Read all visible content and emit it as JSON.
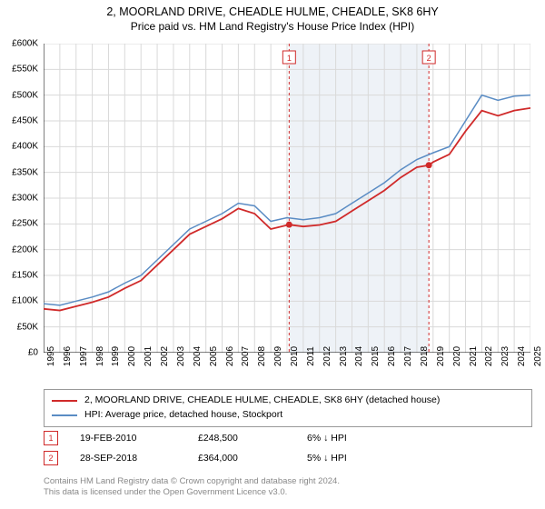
{
  "title": "2, MOORLAND DRIVE, CHEADLE HULME, CHEADLE, SK8 6HY",
  "subtitle": "Price paid vs. HM Land Registry's House Price Index (HPI)",
  "chart": {
    "type": "line",
    "background_color": "#ffffff",
    "grid_color": "#d9d9d9",
    "axis_color": "#000000",
    "shaded_band": {
      "x_from": 2010.13,
      "x_to": 2018.74,
      "fill": "#eef2f7"
    },
    "marker_dash_color": "#d02a2a",
    "x": {
      "min": 1995,
      "max": 2025,
      "tick_step": 1,
      "label_fontsize": 10
    },
    "y": {
      "min": 0,
      "max": 600000,
      "tick_step": 50000,
      "prefix": "£",
      "suffix": "K",
      "label_fontsize": 10
    },
    "series": [
      {
        "name": "2, MOORLAND DRIVE, CHEADLE HULME, CHEADLE, SK8 6HY (detached house)",
        "color": "#d02a2a",
        "line_width": 1.8,
        "points": [
          [
            1995,
            85000
          ],
          [
            1996,
            82000
          ],
          [
            1997,
            90000
          ],
          [
            1998,
            98000
          ],
          [
            1999,
            108000
          ],
          [
            2000,
            125000
          ],
          [
            2001,
            140000
          ],
          [
            2002,
            170000
          ],
          [
            2003,
            200000
          ],
          [
            2004,
            230000
          ],
          [
            2005,
            245000
          ],
          [
            2006,
            260000
          ],
          [
            2007,
            280000
          ],
          [
            2008,
            270000
          ],
          [
            2009,
            240000
          ],
          [
            2010.13,
            248500
          ],
          [
            2011,
            245000
          ],
          [
            2012,
            248000
          ],
          [
            2013,
            255000
          ],
          [
            2014,
            275000
          ],
          [
            2015,
            295000
          ],
          [
            2016,
            315000
          ],
          [
            2017,
            340000
          ],
          [
            2018,
            360000
          ],
          [
            2018.74,
            364000
          ],
          [
            2019,
            370000
          ],
          [
            2020,
            385000
          ],
          [
            2021,
            430000
          ],
          [
            2022,
            470000
          ],
          [
            2023,
            460000
          ],
          [
            2024,
            470000
          ],
          [
            2025,
            475000
          ]
        ]
      },
      {
        "name": "HPI: Average price, detached house, Stockport",
        "color": "#5a8cc4",
        "line_width": 1.5,
        "points": [
          [
            1995,
            95000
          ],
          [
            1996,
            92000
          ],
          [
            1997,
            100000
          ],
          [
            1998,
            108000
          ],
          [
            1999,
            118000
          ],
          [
            2000,
            135000
          ],
          [
            2001,
            150000
          ],
          [
            2002,
            180000
          ],
          [
            2003,
            210000
          ],
          [
            2004,
            240000
          ],
          [
            2005,
            255000
          ],
          [
            2006,
            270000
          ],
          [
            2007,
            290000
          ],
          [
            2008,
            285000
          ],
          [
            2009,
            255000
          ],
          [
            2010,
            262000
          ],
          [
            2011,
            258000
          ],
          [
            2012,
            262000
          ],
          [
            2013,
            270000
          ],
          [
            2014,
            290000
          ],
          [
            2015,
            310000
          ],
          [
            2016,
            330000
          ],
          [
            2017,
            355000
          ],
          [
            2018,
            375000
          ],
          [
            2019,
            388000
          ],
          [
            2020,
            400000
          ],
          [
            2021,
            450000
          ],
          [
            2022,
            500000
          ],
          [
            2023,
            490000
          ],
          [
            2024,
            498000
          ],
          [
            2025,
            500000
          ]
        ]
      }
    ],
    "sale_markers": [
      {
        "n": 1,
        "x": 2010.13,
        "y": 248500,
        "box_border": "#d02a2a"
      },
      {
        "n": 2,
        "x": 2018.74,
        "y": 364000,
        "box_border": "#d02a2a"
      }
    ]
  },
  "legend": {
    "border_color": "#999999",
    "items": [
      {
        "color": "#d02a2a",
        "label": "2, MOORLAND DRIVE, CHEADLE HULME, CHEADLE, SK8 6HY (detached house)"
      },
      {
        "color": "#5a8cc4",
        "label": "HPI: Average price, detached house, Stockport"
      }
    ]
  },
  "sales": [
    {
      "n": "1",
      "border": "#d02a2a",
      "date": "19-FEB-2010",
      "price": "£248,500",
      "diff": "6% ↓ HPI"
    },
    {
      "n": "2",
      "border": "#d02a2a",
      "date": "28-SEP-2018",
      "price": "£364,000",
      "diff": "5% ↓ HPI"
    }
  ],
  "credit_line1": "Contains HM Land Registry data © Crown copyright and database right 2024.",
  "credit_line2": "This data is licensed under the Open Government Licence v3.0."
}
